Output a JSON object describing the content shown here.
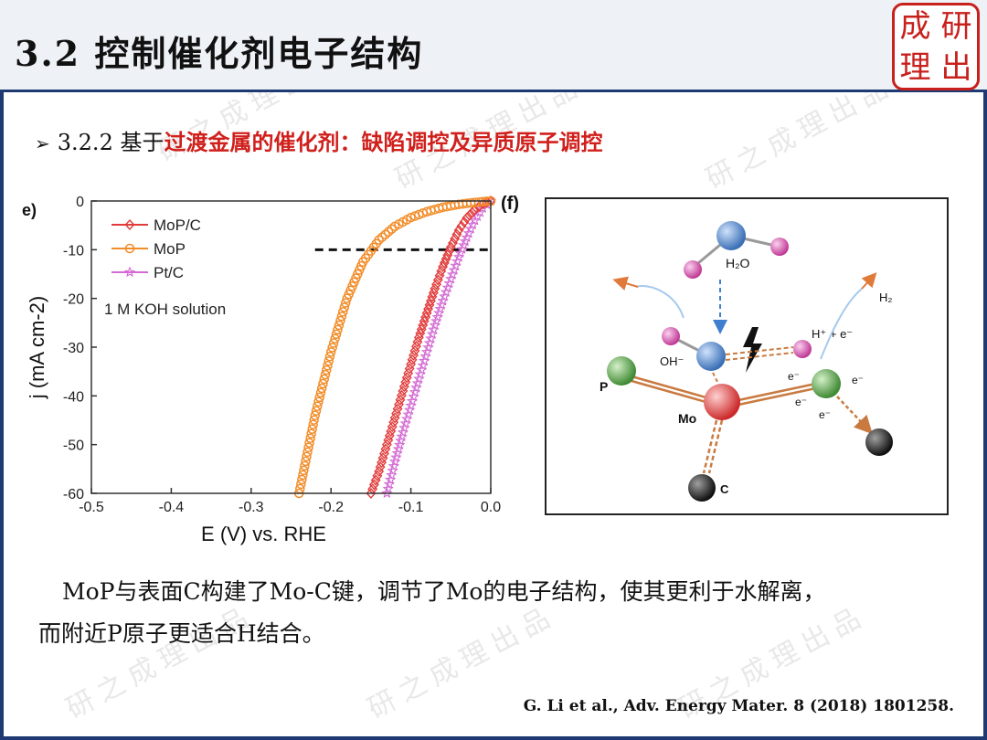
{
  "header": {
    "title": "3.2 控制催化剂电子结构",
    "seal_chars": [
      "成",
      "研",
      "理",
      "出"
    ]
  },
  "subheading": {
    "bullet_symbol": "➢",
    "prefix": "3.2.2 基于",
    "highlight": "过渡金属的催化剂：缺陷调控及异质原子调控"
  },
  "chart_data": {
    "type": "line",
    "panel_label": "e)",
    "xlabel": "E (V) vs. RHE",
    "ylabel": "j (mA cm-2)",
    "xlim": [
      -0.5,
      0.0
    ],
    "ylim": [
      -60,
      0
    ],
    "x_ticks": [
      "-0.5",
      "-0.4",
      "-0.3",
      "-0.2",
      "-0.1",
      "0.0"
    ],
    "y_ticks": [
      "0",
      "-10",
      "-20",
      "-30",
      "-40",
      "-50",
      "-60"
    ],
    "annotation": "1 M KOH solution",
    "reference_line": {
      "y": -10,
      "x_start": -0.22,
      "x_end": 0.0,
      "style": "dashed"
    },
    "series": [
      {
        "name": "MoP/C",
        "color": "#e23b3b",
        "marker": "diamond",
        "x": [
          0.0,
          -0.01,
          -0.02,
          -0.03,
          -0.04,
          -0.05,
          -0.06,
          -0.07,
          -0.08,
          -0.09,
          -0.1,
          -0.11,
          -0.12,
          -0.13,
          -0.14,
          -0.15
        ],
        "y": [
          0,
          -0.6,
          -1.8,
          -3.5,
          -6,
          -9.5,
          -13.5,
          -18,
          -23,
          -28,
          -33.5,
          -39,
          -44.5,
          -50,
          -55.5,
          -60
        ]
      },
      {
        "name": "MoP",
        "color": "#f28c28",
        "marker": "circle",
        "x": [
          0.0,
          -0.02,
          -0.04,
          -0.06,
          -0.08,
          -0.1,
          -0.12,
          -0.14,
          -0.16,
          -0.18,
          -0.2,
          -0.22,
          -0.24
        ],
        "y": [
          0,
          -0.3,
          -0.7,
          -1.3,
          -2.2,
          -3.4,
          -5.2,
          -8.0,
          -12.5,
          -20,
          -31,
          -44,
          -60
        ]
      },
      {
        "name": "Pt/C",
        "color": "#d46bd4",
        "marker": "star",
        "x": [
          0.0,
          -0.01,
          -0.02,
          -0.03,
          -0.04,
          -0.05,
          -0.06,
          -0.07,
          -0.08,
          -0.09,
          -0.1,
          -0.11,
          -0.12,
          -0.13
        ],
        "y": [
          0,
          -1.5,
          -4,
          -7.5,
          -11.5,
          -16,
          -20.5,
          -25.5,
          -31,
          -36.5,
          -42,
          -47.5,
          -53.5,
          -60
        ]
      }
    ]
  },
  "diagram": {
    "panel_label": "(f)",
    "labels": {
      "h2o": "H₂O",
      "oh": "OH⁻",
      "h2": "H₂",
      "proton_electron": "H⁺ + e⁻",
      "p": "P",
      "mo": "Mo",
      "c": "C",
      "electron": "e⁻"
    },
    "colors": {
      "o_atom": "#5a93d6",
      "h_atom": "#e25fb8",
      "p_atom": "#5cae4e",
      "mo_atom": "#e84a4a",
      "c_atom": "#2a2a2a",
      "bond": "#c97a40",
      "arrow": "#e07a3a",
      "dashed_arrow": "#3f7fcf"
    }
  },
  "body": {
    "line1": "MoP与表面C构建了Mo-C键，调节了Mo的电子结构，使其更利于水解离，",
    "line2": "而附近P原子更适合H结合。"
  },
  "citation": "G. Li et al., Adv. Energy Mater. 8 (2018) 1801258.",
  "watermark": "研之成理出品"
}
